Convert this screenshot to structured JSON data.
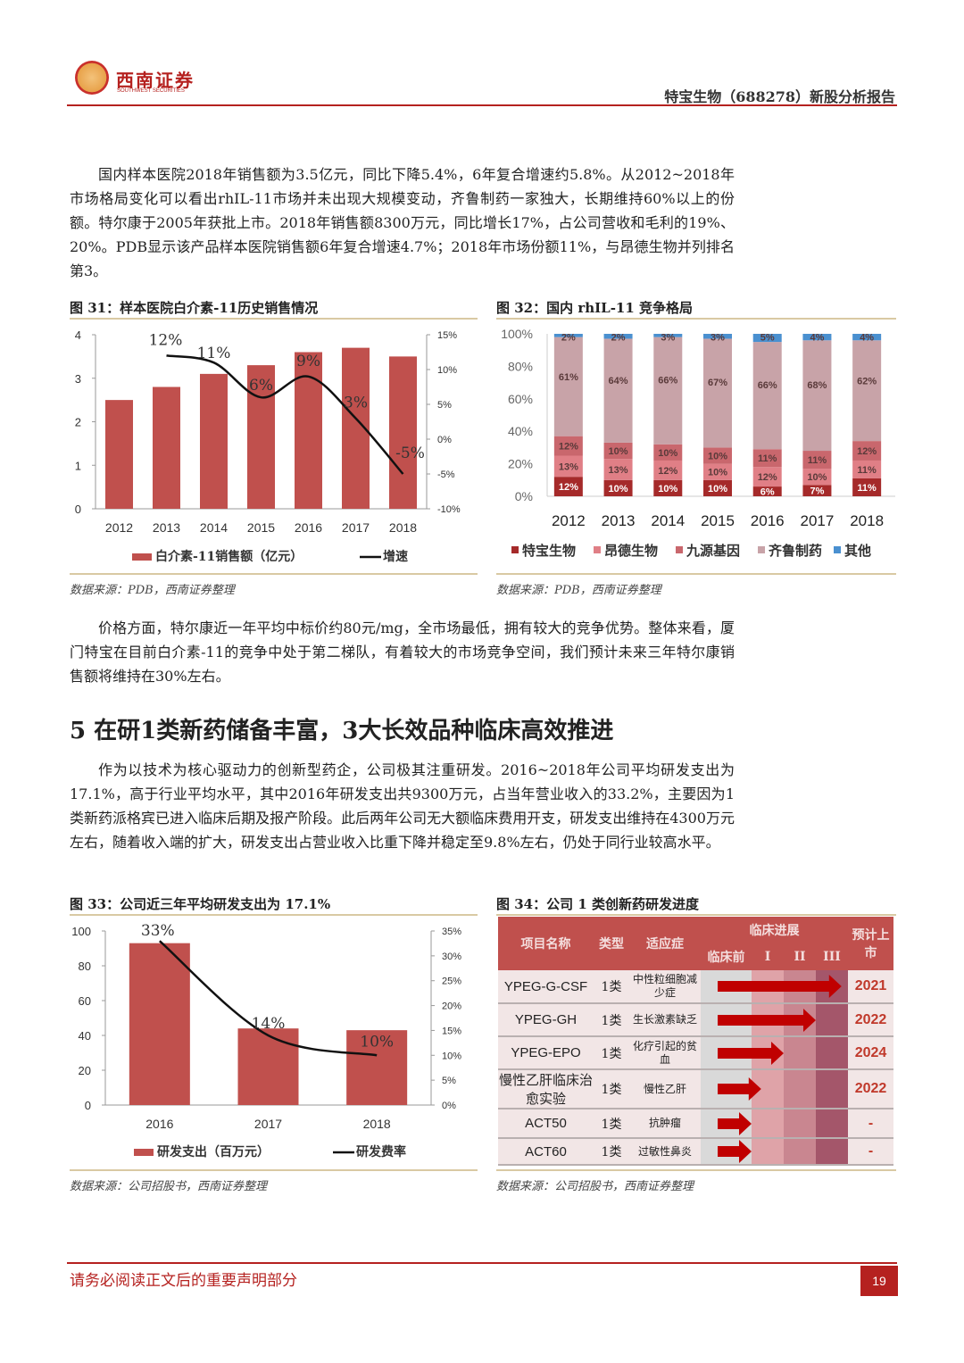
{
  "header": {
    "logo_cn": "西南证券",
    "logo_en": "SOUTHWEST SECURITIES",
    "report_title": "特宝生物（688278）新股分析报告"
  },
  "paragraphs": [
    "国内样本医院2018年销售额为3.5亿元，同比下降5.4%，6年复合增速约5.8%。从2012~2018年市场格局变化可以看出rhIL-11市场并未出现大规模变动，齐鲁制药一家独大，长期维持60%以上的份额。特尔康于2005年获批上市。2018年销售额8300万元，同比增长17%，占公司营收和毛利的19%、20%。PDB显示该产品样本医院销售额6年复合增速4.7%；2018年市场份额11%，与昂德生物并列排名第3。",
    "价格方面，特尔康近一年平均中标价约80元/mg，全市场最低，拥有较大的竞争优势。整体来看，厦门特宝在目前白介素-11的竞争中处于第二梯队，有着较大的市场竞争空间，我们预计未来三年特尔康销售额将维持在30%左右。",
    "作为以技术为核心驱动力的创新型药企，公司极其注重研发。2016~2018年公司平均研发支出为17.1%，高于行业平均水平，其中2016年研发支出共9300万元，占当年营业收入的33.2%，主要因为1类新药派格宾已进入临床后期及报产阶段。此后两年公司无大额临床费用开支，研发支出维持在4300万元左右，随着收入端的扩大，研发支出占营业收入比重下降并稳定至9.8%左右，仍处于同行业较高水平。"
  ],
  "section_heading": "5 在研1类新药储备丰富，3大长效品种临床高效推进",
  "figures": {
    "f31": {
      "title": "图 31：样本医院白介素-11历史销售情况",
      "source": "数据来源：PDB，西南证券整理"
    },
    "f32": {
      "title": "图 32：国内 rhIL-11 竞争格局",
      "source": "数据来源：PDB，西南证券整理"
    },
    "f33": {
      "title": "图 33：公司近三年平均研发支出为 17.1%",
      "source": "数据来源：公司招股书，西南证券整理"
    },
    "f34": {
      "title": "图 34：公司 1 类创新药研发进度",
      "source": "数据来源：公司招股书，西南证券整理"
    }
  },
  "chart_data": [
    {
      "type": "bar",
      "id": "f31",
      "categories": [
        "2012",
        "2013",
        "2014",
        "2015",
        "2016",
        "2017",
        "2018"
      ],
      "series": [
        {
          "name": "白介素-11销售额（亿元）",
          "kind": "bar",
          "axis": "left",
          "values": [
            2.5,
            2.8,
            3.1,
            3.3,
            3.6,
            3.7,
            3.5
          ],
          "color": "#c0504d"
        },
        {
          "name": "增速",
          "kind": "line",
          "axis": "right",
          "values": [
            null,
            12,
            11,
            6,
            9,
            3,
            -5
          ],
          "labels": [
            "",
            "12%",
            "11%",
            "6%",
            "9%",
            "3%",
            "-5%"
          ],
          "color": "#111111"
        }
      ],
      "ylim": [
        0,
        4
      ],
      "yticks": [
        "0",
        "1",
        "2",
        "3",
        "4"
      ],
      "y2lim": [
        -10,
        15
      ],
      "y2ticks": [
        "-10%",
        "-5%",
        "0%",
        "5%",
        "10%",
        "15%"
      ],
      "legend": "bottom",
      "grid": false
    },
    {
      "type": "bar",
      "stacked": true,
      "id": "f32",
      "categories": [
        "2012",
        "2013",
        "2014",
        "2015",
        "2016",
        "2017",
        "2018"
      ],
      "series": [
        {
          "name": "特宝生物",
          "values": [
            12,
            10,
            10,
            10,
            6,
            7,
            11
          ],
          "color": "#a52a2a"
        },
        {
          "name": "昂德生物",
          "values": [
            13,
            13,
            12,
            10,
            12,
            10,
            11
          ],
          "color": "#e07f86"
        },
        {
          "name": "九源基因",
          "values": [
            12,
            10,
            10,
            10,
            11,
            11,
            12
          ],
          "color": "#c9676d"
        },
        {
          "name": "齐鲁制药",
          "values": [
            61,
            64,
            66,
            67,
            66,
            68,
            62
          ],
          "color": "#c8a3a8"
        },
        {
          "name": "其他",
          "values": [
            2,
            2,
            3,
            3,
            5,
            4,
            4
          ],
          "color": "#4a90d0"
        }
      ],
      "ylim": [
        0,
        100
      ],
      "yticks": [
        "0%",
        "20%",
        "40%",
        "60%",
        "80%",
        "100%"
      ],
      "legend": "bottom",
      "grid": false
    },
    {
      "type": "bar",
      "id": "f33",
      "categories": [
        "2016",
        "2017",
        "2018"
      ],
      "series": [
        {
          "name": "研发支出（百万元）",
          "kind": "bar",
          "axis": "left",
          "values": [
            93,
            44,
            43
          ],
          "color": "#c0504d"
        },
        {
          "name": "研发费率",
          "kind": "line",
          "axis": "right",
          "values": [
            33,
            14,
            10
          ],
          "labels": [
            "33%",
            "14%",
            "10%"
          ],
          "color": "#111111"
        }
      ],
      "ylim": [
        0,
        100
      ],
      "yticks": [
        "0",
        "20",
        "40",
        "60",
        "80",
        "100"
      ],
      "y2lim": [
        0,
        35
      ],
      "y2ticks": [
        "0%",
        "5%",
        "10%",
        "15%",
        "20%",
        "25%",
        "30%",
        "35%"
      ],
      "legend": "bottom",
      "grid": false
    },
    {
      "type": "table",
      "id": "f34",
      "header": {
        "name": "项目名称",
        "type": "类型",
        "indication": "适应症",
        "progress": "临床进展",
        "stages": [
          "临床前",
          "I",
          "II",
          "III"
        ],
        "market": "预计上市"
      },
      "rows": [
        {
          "name": "YPEG-G-CSF",
          "type": "1类",
          "indication": "中性粒细胞减少症",
          "progress_stage": 3.8,
          "market": "2021"
        },
        {
          "name": "YPEG-GH",
          "type": "1类",
          "indication": "生长激素缺乏",
          "progress_stage": 3.0,
          "market": "2022"
        },
        {
          "name": "YPEG-EPO",
          "type": "1类",
          "indication": "化疗引起的贫血",
          "progress_stage": 2.0,
          "market": "2024"
        },
        {
          "name": "慢性乙肝临床治愈实验",
          "type": "1类",
          "indication": "慢性乙肝",
          "progress_stage": 1.3,
          "market": "2022"
        },
        {
          "name": "ACT50",
          "type": "1类",
          "indication": "抗肿瘤",
          "progress_stage": 1.0,
          "market": "-"
        },
        {
          "name": "ACT60",
          "type": "1类",
          "indication": "过敏性鼻炎",
          "progress_stage": 1.0,
          "market": "-"
        }
      ],
      "colors": {
        "header": "#c0504d",
        "row": "#f2e6e6",
        "preclinical": "#d9d9d9",
        "I": "#dfa3a8",
        "II": "#c98690",
        "III": "#a4566a",
        "arrow": "#c00000",
        "market_text": "#c0392b"
      }
    }
  ],
  "footer": {
    "disclaimer": "请务必阅读正文后的重要声明部分",
    "page_number": "19"
  }
}
